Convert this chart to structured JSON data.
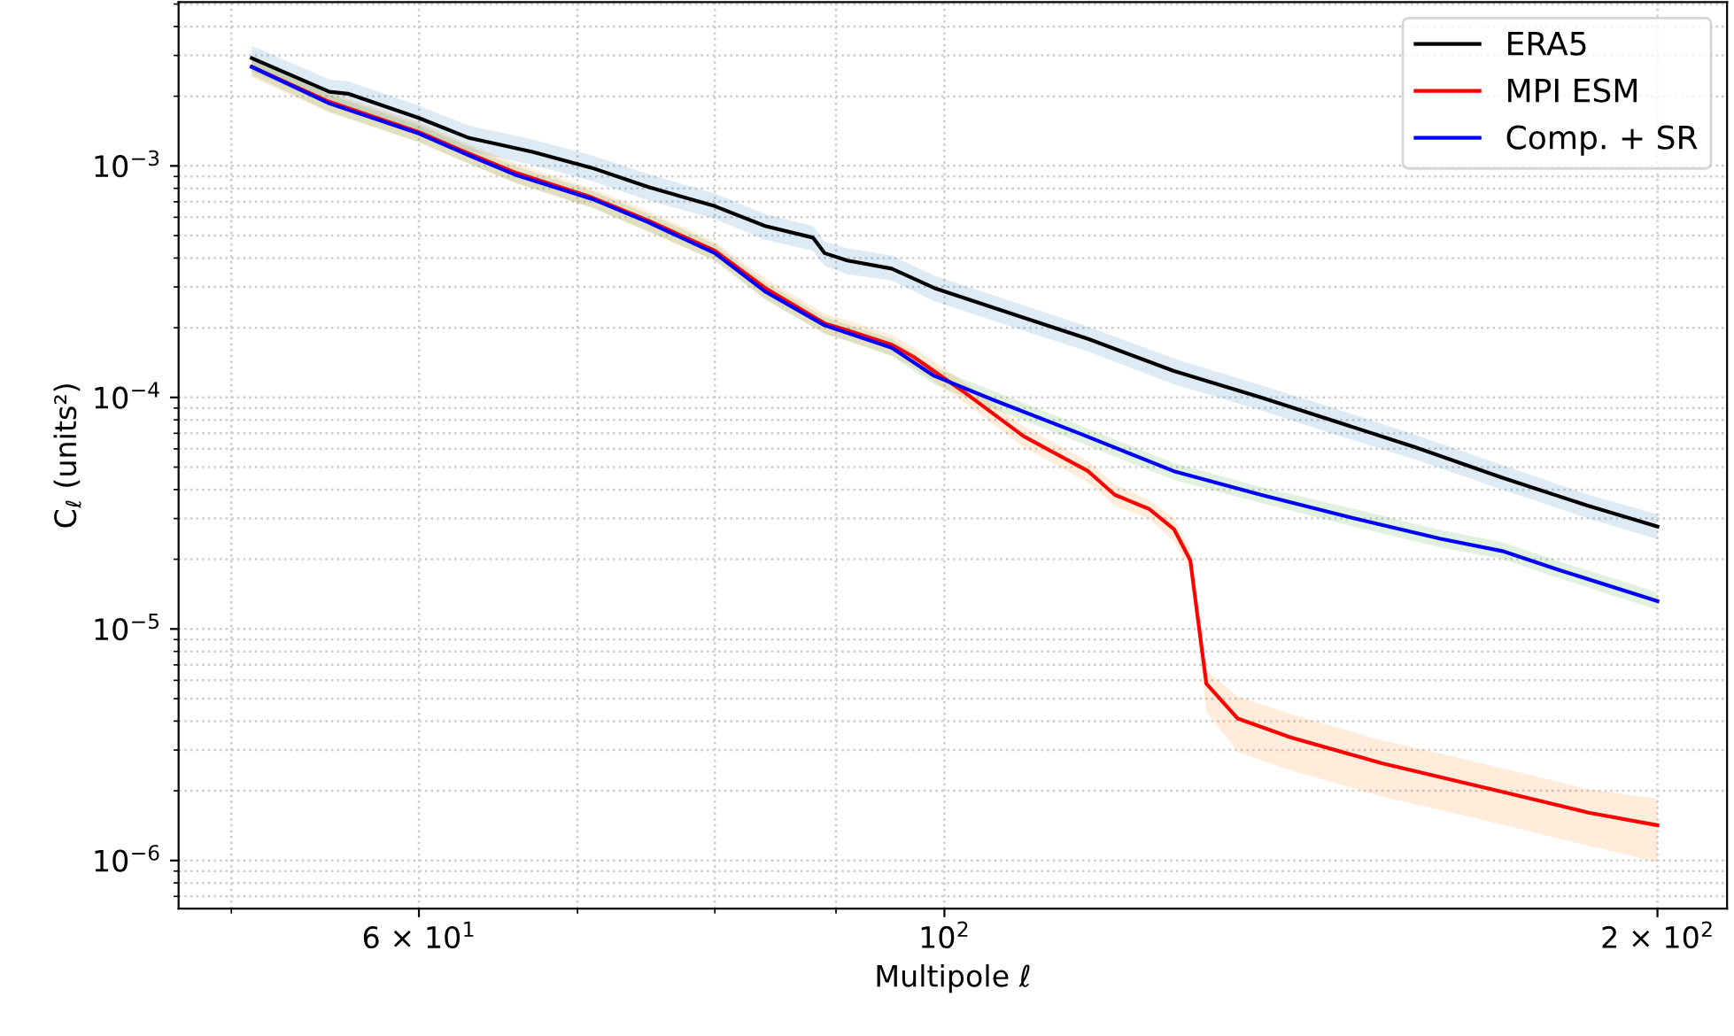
{
  "chart_data": {
    "type": "line",
    "xlabel": "Multipole ℓ",
    "ylabel": "C$_{ℓ}$ (units²)",
    "log": "xy",
    "grid": true,
    "legend": "top right",
    "line_style": "solid",
    "xlim": [
      47.5,
      214
    ],
    "ylim": [
      6.2e-07,
      0.0051
    ],
    "xticks": [
      {
        "value": 50,
        "label": null
      },
      {
        "value": 60,
        "label": "6 × 10$^{1}$"
      },
      {
        "value": 70,
        "label": null
      },
      {
        "value": 80,
        "label": null
      },
      {
        "value": 90,
        "label": null
      },
      {
        "value": 100,
        "label": "10$^{2}$"
      },
      {
        "value": 200,
        "label": "2 × 10$^{2}$"
      }
    ],
    "yticks": [
      {
        "value": 7e-07,
        "label": null
      },
      {
        "value": 8e-07,
        "label": null
      },
      {
        "value": 9e-07,
        "label": null
      },
      {
        "value": 1e-06,
        "label": "10$^{−6}$"
      },
      {
        "value": 2e-06,
        "label": null
      },
      {
        "value": 3e-06,
        "label": null
      },
      {
        "value": 4e-06,
        "label": null
      },
      {
        "value": 5e-06,
        "label": null
      },
      {
        "value": 6e-06,
        "label": null
      },
      {
        "value": 7e-06,
        "label": null
      },
      {
        "value": 8e-06,
        "label": null
      },
      {
        "value": 9e-06,
        "label": null
      },
      {
        "value": 1e-05,
        "label": "10$^{−5}$"
      },
      {
        "value": 2e-05,
        "label": null
      },
      {
        "value": 3e-05,
        "label": null
      },
      {
        "value": 4e-05,
        "label": null
      },
      {
        "value": 5e-05,
        "label": null
      },
      {
        "value": 6e-05,
        "label": null
      },
      {
        "value": 7e-05,
        "label": null
      },
      {
        "value": 8e-05,
        "label": null
      },
      {
        "value": 9e-05,
        "label": null
      },
      {
        "value": 0.0001,
        "label": "10$^{−4}$"
      },
      {
        "value": 0.0002,
        "label": null
      },
      {
        "value": 0.0003,
        "label": null
      },
      {
        "value": 0.0004,
        "label": null
      },
      {
        "value": 0.0005,
        "label": null
      },
      {
        "value": 0.0006,
        "label": null
      },
      {
        "value": 0.0007,
        "label": null
      },
      {
        "value": 0.0008,
        "label": null
      },
      {
        "value": 0.0009,
        "label": null
      },
      {
        "value": 0.001,
        "label": "10$^{−3}$"
      },
      {
        "value": 0.002,
        "label": null
      },
      {
        "value": 0.003,
        "label": null
      },
      {
        "value": 0.004,
        "label": null
      },
      {
        "value": 0.005,
        "label": null
      }
    ],
    "series": [
      {
        "name": "ERA5",
        "color": "#000000",
        "x": [
          51,
          55,
          56,
          60,
          63,
          67,
          71,
          75,
          80,
          84,
          88,
          89,
          91,
          95,
          99,
          108,
          115,
          125,
          136,
          145,
          158,
          172,
          187,
          200
        ],
        "values": [
          0.00292,
          0.00209,
          0.00205,
          0.00161,
          0.00132,
          0.00115,
          0.00098,
          0.00081,
          0.00067,
          0.00055,
          0.00049,
          0.00042,
          0.00039,
          0.00036,
          0.000297,
          0.000221,
          0.000179,
          0.00013,
          0.0001,
          8.1e-05,
          6.1e-05,
          4.5e-05,
          3.4e-05,
          2.77e-05
        ],
        "lower": [
          0.00257,
          0.00184,
          0.0018,
          0.00142,
          0.00116,
          0.00101,
          0.00086,
          0.00071,
          0.00059,
          0.00048,
          0.00043,
          0.00037,
          0.00034,
          0.00032,
          0.000261,
          0.000194,
          0.000158,
          0.000114,
          8.8e-05,
          7.1e-05,
          5.4e-05,
          4e-05,
          3e-05,
          2.44e-05
        ],
        "upper": [
          0.0033,
          0.00236,
          0.00232,
          0.00182,
          0.00149,
          0.0013,
          0.00111,
          0.00092,
          0.00076,
          0.00062,
          0.00055,
          0.00047,
          0.00044,
          0.00041,
          0.000336,
          0.00025,
          0.000202,
          0.000147,
          0.000113,
          9.2e-05,
          6.9e-05,
          5.1e-05,
          3.8e-05,
          3.13e-05
        ]
      },
      {
        "name": "MPI ESM",
        "color": "#ff0000",
        "x": [
          51,
          55,
          60,
          63,
          66,
          71,
          75,
          80,
          84,
          89,
          91,
          95,
          97,
          102,
          108,
          115,
          118,
          122,
          125,
          127,
          129,
          133,
          140,
          153,
          162,
          172,
          187,
          200
        ],
        "values": [
          0.00268,
          0.00189,
          0.0014,
          0.00113,
          0.00093,
          0.00073,
          0.00058,
          0.00043,
          0.000297,
          0.000209,
          0.000195,
          0.000169,
          0.00015,
          0.000105,
          6.8e-05,
          4.8e-05,
          3.8e-05,
          3.3e-05,
          2.7e-05,
          1.98e-05,
          5.8e-06,
          4.1e-06,
          3.4e-06,
          2.63e-06,
          2.29e-06,
          1.98e-06,
          1.61e-06,
          1.42e-06
        ],
        "lower": [
          0.00241,
          0.0017,
          0.00126,
          0.00102,
          0.00084,
          0.00066,
          0.00052,
          0.00039,
          0.000267,
          0.000188,
          0.000176,
          0.000152,
          0.000135,
          9.5e-05,
          6.1e-05,
          4.3e-05,
          3.4e-05,
          3e-05,
          2.4e-05,
          1.78e-05,
          4.4e-06,
          2.95e-06,
          2.45e-06,
          1.89e-06,
          1.65e-06,
          1.43e-06,
          1.16e-06,
          9.8e-07
        ],
        "upper": [
          0.00295,
          0.00208,
          0.00154,
          0.00124,
          0.00102,
          0.0008,
          0.00064,
          0.00047,
          0.000327,
          0.00023,
          0.000215,
          0.000186,
          0.000165,
          0.000116,
          7.5e-05,
          5.3e-05,
          4.2e-05,
          3.6e-05,
          3e-05,
          2.2e-05,
          6.6e-06,
          5.1e-06,
          4.3e-06,
          3.3e-06,
          2.9e-06,
          2.5e-06,
          2.03e-06,
          1.85e-06
        ]
      },
      {
        "name": "Comp. + SR",
        "color": "#0000ff",
        "x": [
          51,
          55,
          60,
          63,
          66,
          71,
          75,
          80,
          84,
          89,
          95,
          99,
          105,
          114,
          125,
          136,
          149,
          162,
          172,
          182,
          200
        ],
        "values": [
          0.00268,
          0.00186,
          0.00138,
          0.00111,
          0.00091,
          0.00072,
          0.00057,
          0.00042,
          0.000287,
          0.000205,
          0.000164,
          0.000124,
          9.7e-05,
          7e-05,
          4.8e-05,
          3.8e-05,
          3e-05,
          2.45e-05,
          2.17e-05,
          1.79e-05,
          1.32e-05
        ],
        "lower": [
          0.00247,
          0.00171,
          0.00127,
          0.00102,
          0.00084,
          0.00066,
          0.00052,
          0.00039,
          0.000264,
          0.000189,
          0.000151,
          0.000114,
          8.9e-05,
          6.4e-05,
          4.4e-05,
          3.5e-05,
          2.76e-05,
          2.25e-05,
          2e-05,
          1.65e-05,
          1.21e-05
        ],
        "upper": [
          0.00292,
          0.00203,
          0.0015,
          0.00121,
          0.00099,
          0.00078,
          0.00062,
          0.00046,
          0.000313,
          0.000223,
          0.000179,
          0.000135,
          0.000106,
          7.6e-05,
          5.2e-05,
          4.1e-05,
          3.3e-05,
          2.67e-05,
          2.37e-05,
          1.95e-05,
          1.44e-05
        ]
      }
    ]
  }
}
